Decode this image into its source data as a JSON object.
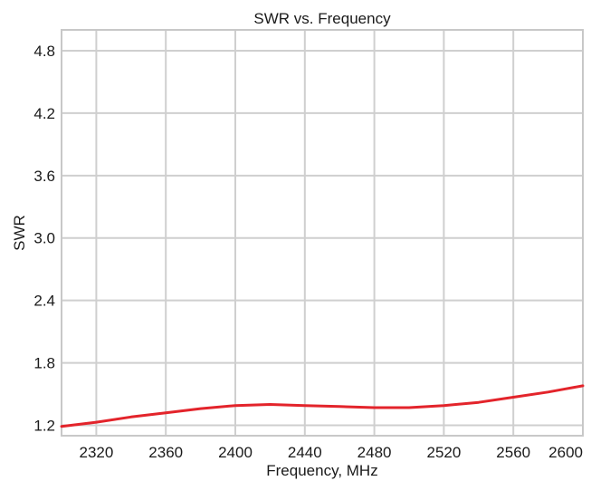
{
  "chart_data": {
    "type": "line",
    "title": "SWR vs. Frequency",
    "xlabel": "Frequency, MHz",
    "ylabel": "SWR",
    "xlim": [
      2300,
      2600
    ],
    "ylim": [
      1.1,
      5.0
    ],
    "xticks": [
      2320,
      2360,
      2400,
      2440,
      2480,
      2520,
      2560,
      2600
    ],
    "yticks": [
      1.2,
      1.8,
      2.4,
      3.0,
      3.6,
      4.2,
      4.8
    ],
    "ytick_labels": [
      "1.2",
      "1.8",
      "2.4",
      "3.0",
      "3.6",
      "4.2",
      "4.8"
    ],
    "grid": true,
    "series": [
      {
        "color": "#e3242b",
        "x": [
          2300,
          2320,
          2340,
          2360,
          2380,
          2400,
          2420,
          2440,
          2460,
          2480,
          2500,
          2520,
          2540,
          2560,
          2580,
          2590,
          2600
        ],
        "y": [
          1.19,
          1.23,
          1.28,
          1.32,
          1.36,
          1.39,
          1.4,
          1.39,
          1.38,
          1.37,
          1.37,
          1.39,
          1.42,
          1.47,
          1.52,
          1.55,
          1.58
        ]
      }
    ]
  }
}
